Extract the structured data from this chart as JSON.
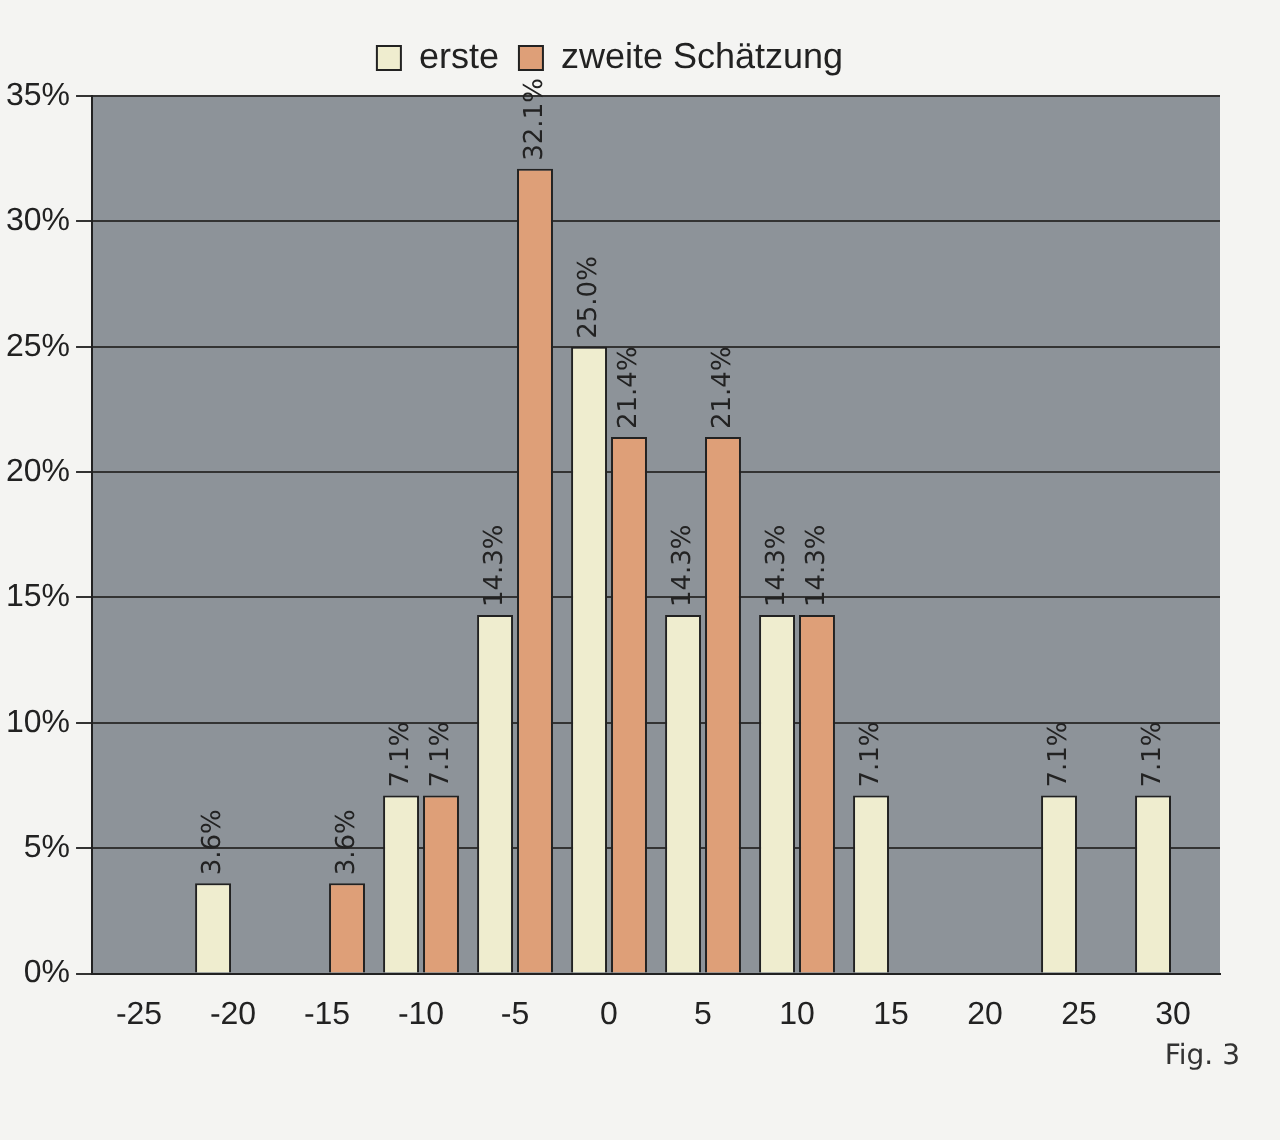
{
  "chart_data": {
    "type": "bar",
    "categories": [
      "-25",
      "-20",
      "-15",
      "-10",
      "-5",
      "0",
      "5",
      "10",
      "15",
      "20",
      "25",
      "30"
    ],
    "series": [
      {
        "name": "erste",
        "color": "#efedcf",
        "values": [
          null,
          3.6,
          null,
          7.1,
          14.3,
          25.0,
          14.3,
          14.3,
          7.1,
          null,
          7.1,
          7.1
        ],
        "value_labels": [
          null,
          "3.6%",
          null,
          "7.1%",
          "14.3%",
          "25.0%",
          "14.3%",
          "14.3%",
          "7.1%",
          null,
          "7.1%",
          "7.1%"
        ]
      },
      {
        "name": "zweite Schätzung",
        "color": "#de9f78",
        "values": [
          null,
          null,
          3.6,
          7.1,
          32.1,
          21.4,
          21.4,
          14.3,
          null,
          null,
          null,
          null
        ],
        "value_labels": [
          null,
          null,
          "3.6%",
          "7.1%",
          "32.1%",
          "21.4%",
          "21.4%",
          "14.3%",
          null,
          null,
          null,
          null
        ]
      }
    ],
    "ylim": [
      0,
      35
    ],
    "yticks": [
      {
        "value": 0,
        "label": "0%"
      },
      {
        "value": 5,
        "label": "5%"
      },
      {
        "value": 10,
        "label": "10%"
      },
      {
        "value": 15,
        "label": "15%"
      },
      {
        "value": 20,
        "label": "20%"
      },
      {
        "value": 25,
        "label": "25%"
      },
      {
        "value": 30,
        "label": "30%"
      },
      {
        "value": 35,
        "label": "35%"
      }
    ],
    "grid": "y",
    "legend": "top",
    "annotations": [
      "Fig. 3"
    ]
  }
}
